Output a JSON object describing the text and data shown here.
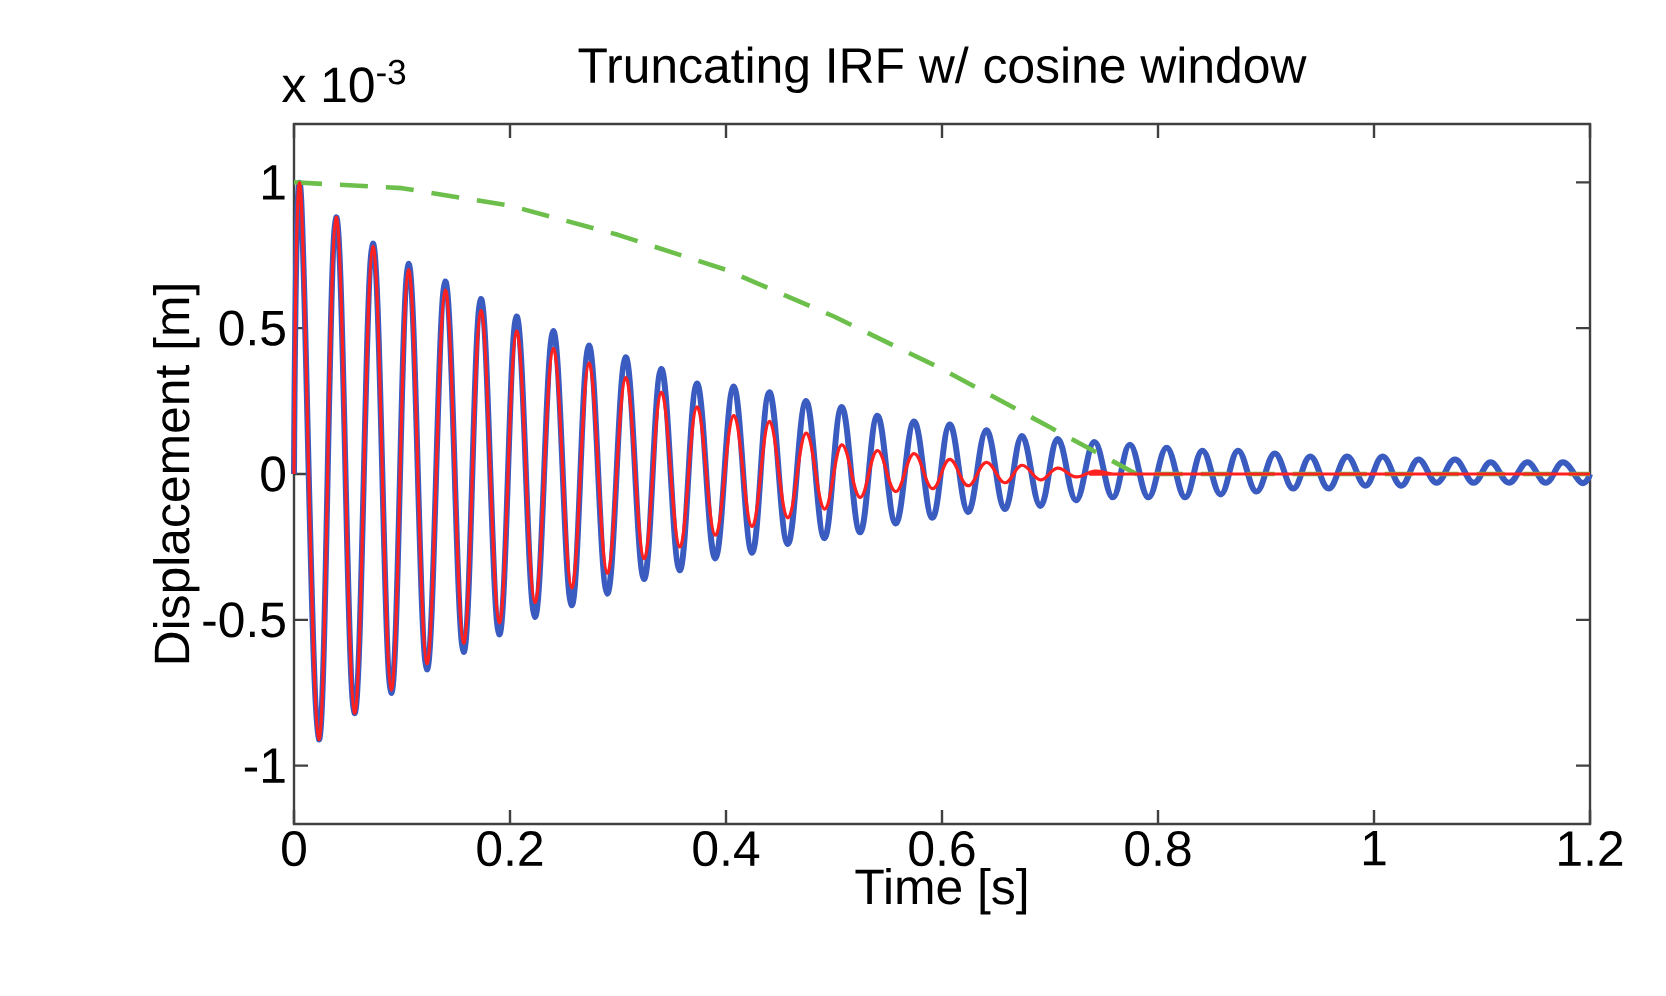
{
  "chart_data": {
    "type": "line",
    "title": "Truncating IRF w/ cosine window",
    "annotations": [
      "x 10$^{-3}$"
    ],
    "xlabel": "Time [s]",
    "ylabel": "Displacement [m]",
    "xlim": [
      0,
      1.2
    ],
    "ylim": [
      -1.2,
      1.2
    ],
    "xticks": [
      0,
      0.2,
      0.4,
      0.6,
      0.8,
      1,
      1.2
    ],
    "yticks": [
      -1,
      -0.5,
      0,
      0.5,
      1
    ],
    "series": [
      {
        "color": "#3a5bbf",
        "line_style": "solid",
        "x": [
          0,
          0.006,
          0.023,
          0.039,
          0.056,
          0.073,
          0.09,
          0.106,
          0.123,
          0.14,
          0.157,
          0.173,
          0.19,
          0.206,
          0.223,
          0.24,
          0.257,
          0.273,
          0.29,
          0.307,
          0.324,
          0.34,
          0.357,
          0.373,
          0.39,
          0.407,
          0.424,
          0.44,
          0.457,
          0.474,
          0.491,
          0.507,
          0.524,
          0.54,
          0.557,
          0.574,
          0.591,
          0.607,
          0.624,
          0.641,
          0.658,
          0.674,
          0.691,
          0.707,
          0.724,
          0.741,
          0.758,
          0.774,
          0.791,
          0.808,
          0.825,
          0.841,
          0.858,
          0.874,
          0.891,
          0.908,
          0.925,
          0.941,
          0.958,
          0.975,
          0.992,
          1.008,
          1.025,
          1.041,
          1.058,
          1.075,
          1.092,
          1.108,
          1.125,
          1.142,
          1.159,
          1.175,
          1.192,
          1.2
        ],
        "values": [
          0,
          0.98,
          -0.91,
          0.88,
          -0.82,
          0.79,
          -0.75,
          0.72,
          -0.67,
          0.66,
          -0.61,
          0.6,
          -0.55,
          0.54,
          -0.49,
          0.49,
          -0.45,
          0.44,
          -0.41,
          0.4,
          -0.36,
          0.36,
          -0.33,
          0.31,
          -0.29,
          0.3,
          -0.27,
          0.28,
          -0.24,
          0.25,
          -0.22,
          0.23,
          -0.2,
          0.2,
          -0.17,
          0.18,
          -0.15,
          0.17,
          -0.13,
          0.15,
          -0.12,
          0.13,
          -0.11,
          0.12,
          -0.09,
          0.11,
          -0.08,
          0.1,
          -0.08,
          0.09,
          -0.08,
          0.08,
          -0.07,
          0.08,
          -0.06,
          0.07,
          -0.05,
          0.06,
          -0.05,
          0.06,
          -0.04,
          0.06,
          -0.04,
          0.05,
          -0.03,
          0.05,
          -0.03,
          0.04,
          -0.03,
          0.04,
          -0.03,
          0.04,
          -0.03,
          0
        ]
      },
      {
        "color": "#6cbf4a",
        "line_style": "dashed",
        "x": [
          0,
          0.1,
          0.2,
          0.3,
          0.4,
          0.5,
          0.6,
          0.7,
          0.78,
          1.2
        ],
        "values": [
          1,
          0.98,
          0.92,
          0.82,
          0.7,
          0.54,
          0.36,
          0.16,
          0,
          0
        ]
      },
      {
        "color": "#ff2020",
        "line_style": "solid",
        "x": [
          0,
          0.006,
          0.023,
          0.039,
          0.056,
          0.073,
          0.09,
          0.106,
          0.123,
          0.14,
          0.157,
          0.173,
          0.19,
          0.206,
          0.223,
          0.24,
          0.257,
          0.273,
          0.29,
          0.307,
          0.324,
          0.34,
          0.357,
          0.373,
          0.39,
          0.407,
          0.424,
          0.44,
          0.457,
          0.474,
          0.491,
          0.507,
          0.524,
          0.54,
          0.557,
          0.574,
          0.591,
          0.607,
          0.624,
          0.641,
          0.658,
          0.674,
          0.691,
          0.707,
          0.724,
          0.741,
          0.758,
          0.78,
          1.2
        ],
        "values": [
          0,
          0.98,
          -0.91,
          0.88,
          -0.82,
          0.78,
          -0.74,
          0.7,
          -0.65,
          0.63,
          -0.58,
          0.56,
          -0.51,
          0.49,
          -0.44,
          0.43,
          -0.39,
          0.38,
          -0.34,
          0.33,
          -0.29,
          0.28,
          -0.25,
          0.23,
          -0.21,
          0.2,
          -0.18,
          0.18,
          -0.15,
          0.14,
          -0.12,
          0.1,
          -0.08,
          0.08,
          -0.06,
          0.07,
          -0.05,
          0.05,
          -0.04,
          0.04,
          -0.03,
          0.03,
          -0.02,
          0.02,
          -0.01,
          0.01,
          0,
          0,
          0
        ]
      }
    ]
  }
}
